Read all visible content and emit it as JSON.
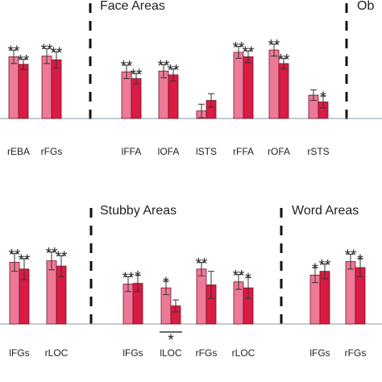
{
  "colors": {
    "bar_light": "#ec7a97",
    "bar_dark": "#d81c43",
    "bar_outline": "#7a0f28",
    "errorbar": "#333333",
    "divider": "#111111",
    "baseline": "#8a9aa6"
  },
  "chart_data": [
    {
      "type": "bar",
      "panel": "top",
      "sections": [
        {
          "title": "",
          "categories": [
            "rEBA",
            "rFGs"
          ]
        },
        {
          "title": "Face Areas",
          "categories": [
            "lFFA",
            "lOFA",
            "lSTS",
            "rFFA",
            "rOFA",
            "rSTS"
          ]
        },
        {
          "title": "Ob",
          "categories": []
        }
      ],
      "categories": [
        "rEBA",
        "rFGs",
        "lFFA",
        "lOFA",
        "lSTS",
        "rFFA",
        "rOFA",
        "rSTS"
      ],
      "series": [
        {
          "values": [
            0.82,
            0.83,
            0.62,
            0.63,
            0.1,
            0.88,
            0.91,
            0.31
          ],
          "errors": [
            0.09,
            0.1,
            0.09,
            0.09,
            0.09,
            0.08,
            0.08,
            0.07
          ],
          "stars": [
            "**",
            "**",
            "**",
            "**",
            "",
            "**",
            "**",
            ""
          ]
        },
        {
          "values": [
            0.72,
            0.78,
            0.53,
            0.58,
            0.24,
            0.82,
            0.73,
            0.22
          ],
          "errors": [
            0.07,
            0.11,
            0.07,
            0.08,
            0.09,
            0.08,
            0.07,
            0.08
          ],
          "stars": [
            "**",
            "**",
            "**",
            "**",
            "",
            "**",
            "**",
            "*"
          ]
        }
      ],
      "ylim": [
        0,
        1.2
      ]
    },
    {
      "type": "bar",
      "panel": "bottom",
      "sections": [
        {
          "title": "",
          "categories": [
            "lFGs",
            "rLOC"
          ]
        },
        {
          "title": "Stubby Areas",
          "categories": [
            "lFGs",
            "lLOC",
            "rFGs",
            "rLOC"
          ]
        },
        {
          "title": "Word Areas",
          "categories": [
            "lFGs",
            "rFGs"
          ]
        }
      ],
      "categories": [
        "lFGs",
        "rLOC",
        "lFGs",
        "lLOC",
        "rFGs",
        "rLOC",
        "lFGs",
        "rFGs"
      ],
      "series": [
        {
          "values": [
            0.82,
            0.84,
            0.53,
            0.48,
            0.73,
            0.56,
            0.65,
            0.83
          ],
          "errors": [
            0.12,
            0.12,
            0.1,
            0.09,
            0.09,
            0.1,
            0.1,
            0.1
          ],
          "stars": [
            "**",
            "**",
            "**",
            "*",
            "**",
            "**",
            "*",
            "**"
          ]
        },
        {
          "values": [
            0.73,
            0.77,
            0.54,
            0.24,
            0.52,
            0.48,
            0.7,
            0.75
          ],
          "errors": [
            0.14,
            0.14,
            0.11,
            0.08,
            0.18,
            0.14,
            0.1,
            0.12
          ],
          "stars": [
            "**",
            "**",
            "*",
            "",
            "",
            "*",
            "**",
            "*"
          ]
        }
      ],
      "significance_brackets": [
        {
          "category_index": 3,
          "label": "*"
        }
      ],
      "ylim": [
        0,
        1.2
      ]
    }
  ]
}
